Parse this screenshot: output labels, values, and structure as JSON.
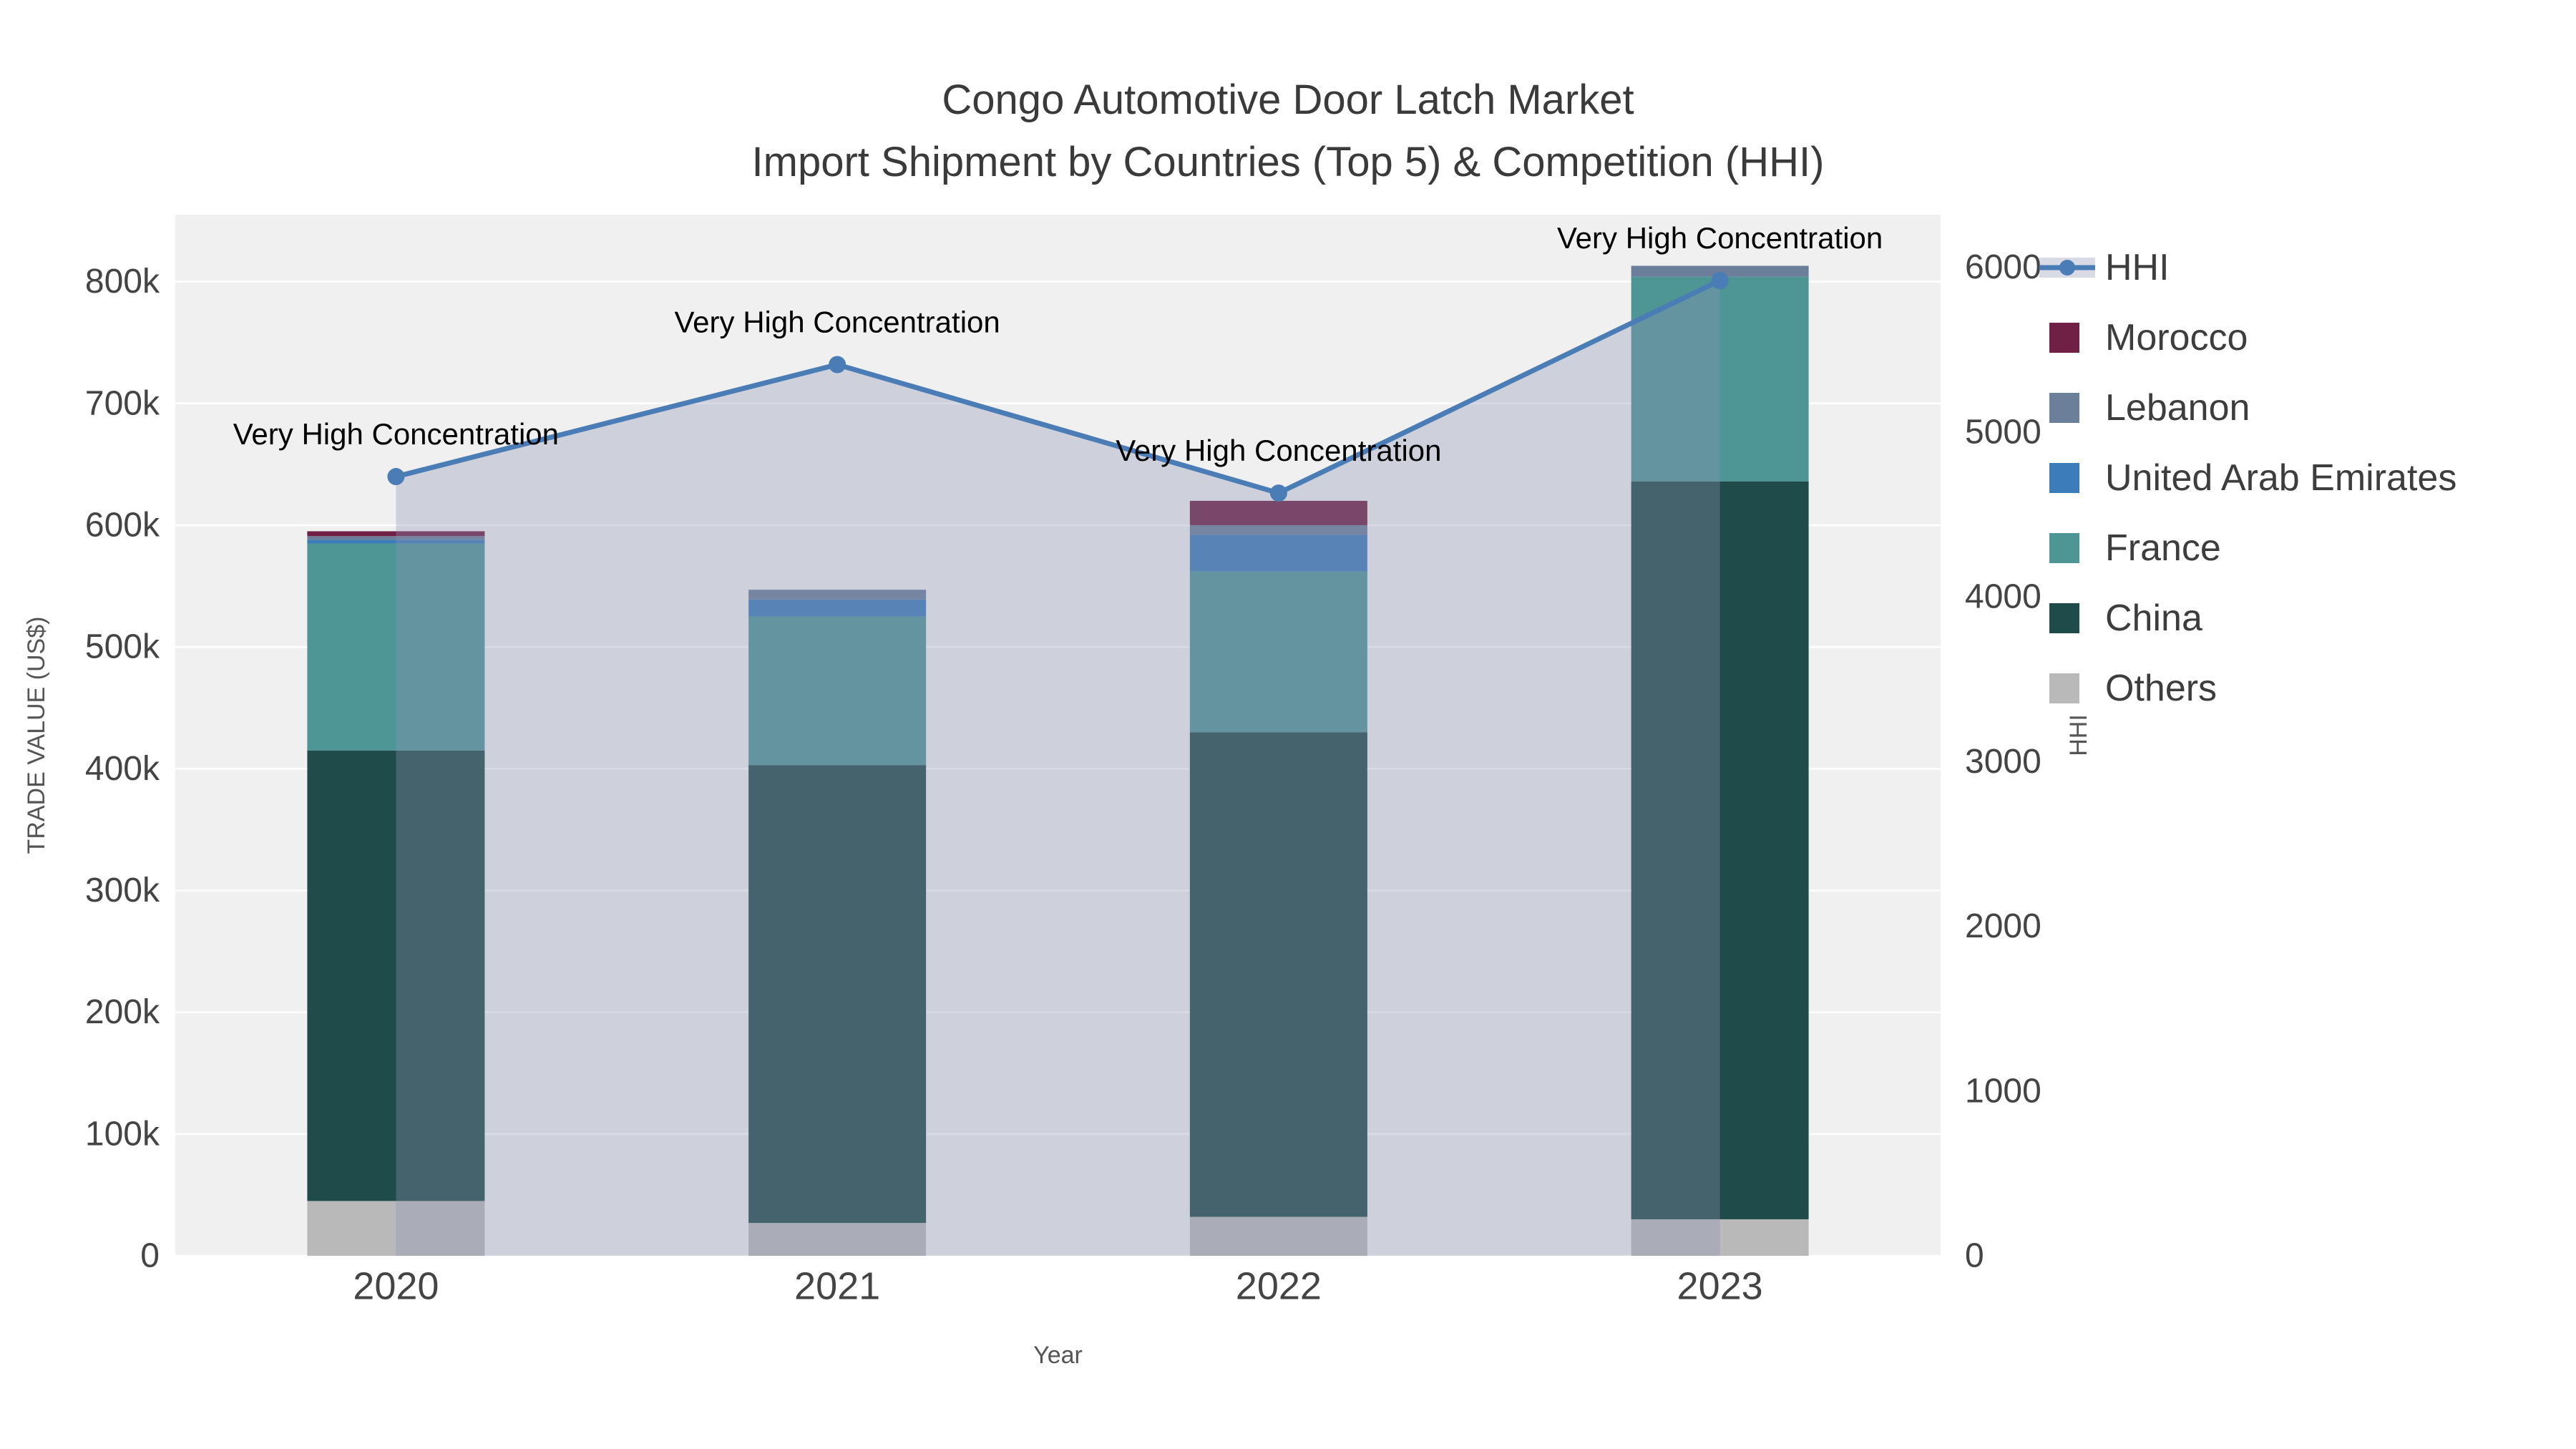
{
  "chart_data": {
    "type": "bar",
    "stacked": true,
    "title": "Congo Automotive Door Latch Market",
    "subtitle": "Import Shipment by Countries (Top 5) & Competition (HHI)",
    "xlabel": "Year",
    "ylabel": "TRADE VALUE (US$)",
    "ylabel_right": "HHI",
    "categories": [
      "2020",
      "2021",
      "2022",
      "2023"
    ],
    "bar_series": [
      {
        "name": "Others",
        "color": "#b9b9b9",
        "values": [
          45000,
          27000,
          32000,
          30000
        ]
      },
      {
        "name": "China",
        "color": "#1f4b4a",
        "values": [
          370000,
          376000,
          398000,
          606000
        ]
      },
      {
        "name": "France",
        "color": "#4e9596",
        "values": [
          170000,
          122000,
          132000,
          168000
        ]
      },
      {
        "name": "United Arab Emirates",
        "color": "#3c7cba",
        "values": [
          3000,
          14000,
          30000,
          0
        ]
      },
      {
        "name": "Lebanon",
        "color": "#6b7f9a",
        "values": [
          3000,
          8000,
          8000,
          9000
        ]
      },
      {
        "name": "Morocco",
        "color": "#6f2044",
        "values": [
          4000,
          0,
          20000,
          0
        ]
      }
    ],
    "line_series": {
      "name": "HHI",
      "color": "#4a7cb5",
      "values": [
        4730,
        5410,
        4630,
        5920
      ],
      "area_fill": "rgba(140,146,178,0.34)"
    },
    "annotations": [
      {
        "category": "2020",
        "text": "Very High Concentration"
      },
      {
        "category": "2021",
        "text": "Very High Concentration"
      },
      {
        "category": "2022",
        "text": "Very High Concentration"
      },
      {
        "category": "2023",
        "text": "Very High Concentration"
      }
    ],
    "axes": {
      "left": {
        "max": 855000,
        "ticks": [
          {
            "value": 0,
            "label": "0"
          },
          {
            "value": 100000,
            "label": "100k"
          },
          {
            "value": 200000,
            "label": "200k"
          },
          {
            "value": 300000,
            "label": "300k"
          },
          {
            "value": 400000,
            "label": "400k"
          },
          {
            "value": 500000,
            "label": "500k"
          },
          {
            "value": 600000,
            "label": "600k"
          },
          {
            "value": 700000,
            "label": "700k"
          },
          {
            "value": 800000,
            "label": "800k"
          }
        ]
      },
      "right": {
        "max": 6320,
        "ticks": [
          {
            "value": 0,
            "label": "0"
          },
          {
            "value": 1000,
            "label": "1000"
          },
          {
            "value": 2000,
            "label": "2000"
          },
          {
            "value": 3000,
            "label": "3000"
          },
          {
            "value": 4000,
            "label": "4000"
          },
          {
            "value": 5000,
            "label": "5000"
          },
          {
            "value": 6000,
            "label": "6000"
          }
        ]
      }
    },
    "legend": [
      "HHI",
      "Morocco",
      "Lebanon",
      "United Arab Emirates",
      "France",
      "China",
      "Others"
    ],
    "colors": {
      "plot_bg": "#f0f0f1",
      "grid": "#ffffff",
      "tick_text": "#444444",
      "axis_title_text": "#555555",
      "title_text": "#3a3a3a",
      "annotation_text": "#000000",
      "legend_text": "#3d3d3d"
    }
  }
}
